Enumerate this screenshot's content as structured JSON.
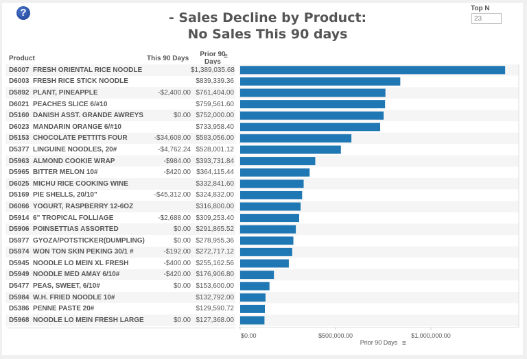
{
  "header": {
    "title_line1": "- Sales Decline by Product:",
    "title_line2": "No Sales This 90 days",
    "help_icon": "question-circle-icon"
  },
  "top_n": {
    "label": "Top N",
    "value": "23"
  },
  "table": {
    "col_product": "Product",
    "col_this": "This 90 Days",
    "col_prior": "Prior 90 Days",
    "sort_icon": "sort-descending-icon"
  },
  "chart_data": {
    "type": "bar",
    "orientation": "horizontal",
    "xlabel": "Prior 90 Days",
    "xlim": [
      0,
      1400000
    ],
    "x_ticks": [
      "$0.00",
      "$500,000.00",
      "$1,000,000.00"
    ],
    "x_tick_values": [
      0,
      500000,
      1000000
    ],
    "bar_color": "#1f77b4",
    "grid": false,
    "rows": [
      {
        "code": "D6007",
        "product": "FRESH ORIENTAL RICE NOODLE",
        "this": "",
        "prior": "$1,389,035.68",
        "value": 1389035.68
      },
      {
        "code": "D6003",
        "product": "FRESH RICE STICK NOODLE",
        "this": "",
        "prior": "$839,339.36",
        "value": 839339.36
      },
      {
        "code": "D5892",
        "product": "PLANT, PINEAPPLE",
        "this": "-$2,400.00",
        "prior": "$761,404.00",
        "value": 761404
      },
      {
        "code": "D6021",
        "product": "PEACHES SLICE 6/#10",
        "this": "",
        "prior": "$759,561.60",
        "value": 759561.6
      },
      {
        "code": "D5160",
        "product": "DANISH ASST. GRANDE AWREYS",
        "this": "$0.00",
        "prior": "$752,000.00",
        "value": 752000
      },
      {
        "code": "D6023",
        "product": "MANDARIN ORANGE 6/#10",
        "this": "",
        "prior": "$733,958.40",
        "value": 733958.4
      },
      {
        "code": "D5153",
        "product": "CHOCOLATE PETTITS FOUR",
        "this": "-$34,608.00",
        "prior": "$583,056.00",
        "value": 583056
      },
      {
        "code": "D5377",
        "product": "LINGUINE NOODLES, 20#",
        "this": "-$4,762.24",
        "prior": "$528,001.12",
        "value": 528001.12
      },
      {
        "code": "D5963",
        "product": "ALMOND COOKIE WRAP",
        "this": "-$984.00",
        "prior": "$393,731.84",
        "value": 393731.84
      },
      {
        "code": "D5965",
        "product": "BITTER MELON 10#",
        "this": "-$420.00",
        "prior": "$364,115.44",
        "value": 364115.44
      },
      {
        "code": "D6025",
        "product": "MICHU RICE COOKING WINE",
        "this": "",
        "prior": "$332,841.60",
        "value": 332841.6
      },
      {
        "code": "D5169",
        "product": "PIE SHELLS, 20/10\"",
        "this": "-$45,312.00",
        "prior": "$324,832.00",
        "value": 324832
      },
      {
        "code": "D6066",
        "product": "YOGURT, RASPBERRY 12-6OZ",
        "this": "",
        "prior": "$316,800.00",
        "value": 316800
      },
      {
        "code": "D5914",
        "product": "6\" TROPICAL FOLLIAGE",
        "this": "-$2,688.00",
        "prior": "$309,253.40",
        "value": 309253.4
      },
      {
        "code": "D5906",
        "product": "POINSETTIAS ASSORTED",
        "this": "$0.00",
        "prior": "$291,865.52",
        "value": 291865.52
      },
      {
        "code": "D5977",
        "product": "GYOZA/POTSTICKER(DUMPLING)",
        "this": "$0.00",
        "prior": "$278,955.36",
        "value": 278955.36
      },
      {
        "code": "D5974",
        "product": "WON TON SKIN PEKING 30/1 #",
        "this": "-$192.00",
        "prior": "$272,717.12",
        "value": 272717.12
      },
      {
        "code": "D5945",
        "product": "NOODLE LO MEIN XL FRESH",
        "this": "-$400.00",
        "prior": "$255,162.56",
        "value": 255162.56
      },
      {
        "code": "D5949",
        "product": "NOODLE MED  AMAY 6/10#",
        "this": "-$420.00",
        "prior": "$176,906.80",
        "value": 176906.8
      },
      {
        "code": "D5477",
        "product": "PEAS, SWEET, 6/10#",
        "this": "$0.00",
        "prior": "$153,600.00",
        "value": 153600
      },
      {
        "code": "D5984",
        "product": "W.H. FRIED NOODLE 10#",
        "this": "",
        "prior": "$132,792.00",
        "value": 132792
      },
      {
        "code": "D5386",
        "product": "PENNE PASTE 20#",
        "this": "",
        "prior": "$129,590.72",
        "value": 129590.72
      },
      {
        "code": "D5968",
        "product": "NOODLE LO MEIN FRESH LARGE",
        "this": "$0.00",
        "prior": "$127,368.00",
        "value": 127368
      }
    ]
  }
}
